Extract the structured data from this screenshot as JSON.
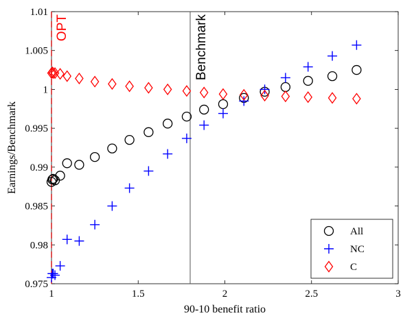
{
  "chart_data": {
    "type": "scatter",
    "xlabel": "90-10 benefit ratio",
    "ylabel": "Earnings/Benchmark",
    "xlim": [
      1,
      3
    ],
    "ylim": [
      0.975,
      1.01
    ],
    "xticks": [
      1,
      1.5,
      2,
      2.5,
      3
    ],
    "xtick_labels": [
      "1",
      "1.5",
      "2",
      "2.5",
      "3"
    ],
    "yticks": [
      0.975,
      0.98,
      0.985,
      0.99,
      0.995,
      1,
      1.005,
      1.01
    ],
    "ytick_labels": [
      "0.975",
      "0.98",
      "0.985",
      "0.99",
      "0.995",
      "1",
      "1.005",
      "1.01"
    ],
    "grid": false,
    "legend_position": "bottom-right",
    "vlines": [
      {
        "label": "OPT",
        "x": 1.0,
        "color": "#d62728",
        "style": "dashed"
      },
      {
        "label": "Benchmark",
        "x": 1.8,
        "color": "#555555",
        "style": "solid"
      }
    ],
    "series": [
      {
        "name": "All",
        "marker": "circle",
        "color": "#000000",
        "x": [
          1.0,
          1.005,
          1.01,
          1.02,
          1.05,
          1.09,
          1.16,
          1.25,
          1.35,
          1.45,
          1.56,
          1.67,
          1.78,
          1.88,
          1.99,
          2.11,
          2.23,
          2.35,
          2.48,
          2.62,
          2.76
        ],
        "y": [
          0.9881,
          0.9884,
          0.9885,
          0.9883,
          0.9889,
          0.9905,
          0.9903,
          0.9913,
          0.9924,
          0.9935,
          0.9945,
          0.9956,
          0.9965,
          0.9974,
          0.9981,
          0.9989,
          0.9997,
          1.0003,
          1.0011,
          1.0017,
          1.0025
        ]
      },
      {
        "name": "NC",
        "marker": "plus",
        "color": "#0000ff",
        "x": [
          1.0,
          1.005,
          1.01,
          1.02,
          1.05,
          1.09,
          1.16,
          1.25,
          1.35,
          1.45,
          1.56,
          1.67,
          1.78,
          1.88,
          1.99,
          2.11,
          2.23,
          2.35,
          2.48,
          2.62,
          2.76
        ],
        "y": [
          0.9758,
          0.9763,
          0.9763,
          0.9761,
          0.9773,
          0.9807,
          0.9805,
          0.9826,
          0.985,
          0.9873,
          0.9895,
          0.9917,
          0.9937,
          0.9954,
          0.9969,
          0.9985,
          1.0,
          1.0015,
          1.0029,
          1.0043,
          1.0057
        ]
      },
      {
        "name": "C",
        "marker": "diamond",
        "color": "#ff0000",
        "x": [
          1.0,
          1.005,
          1.01,
          1.02,
          1.05,
          1.09,
          1.16,
          1.25,
          1.35,
          1.45,
          1.56,
          1.67,
          1.78,
          1.88,
          1.99,
          2.11,
          2.23,
          2.35,
          2.48,
          2.62,
          2.76
        ],
        "y": [
          1.0021,
          1.0022,
          1.0021,
          1.0021,
          1.002,
          1.0017,
          1.0014,
          1.001,
          1.0007,
          1.0004,
          1.0002,
          1.0,
          0.9998,
          0.9996,
          0.9994,
          0.9993,
          0.9992,
          0.9991,
          0.999,
          0.9989,
          0.9988
        ]
      }
    ]
  }
}
